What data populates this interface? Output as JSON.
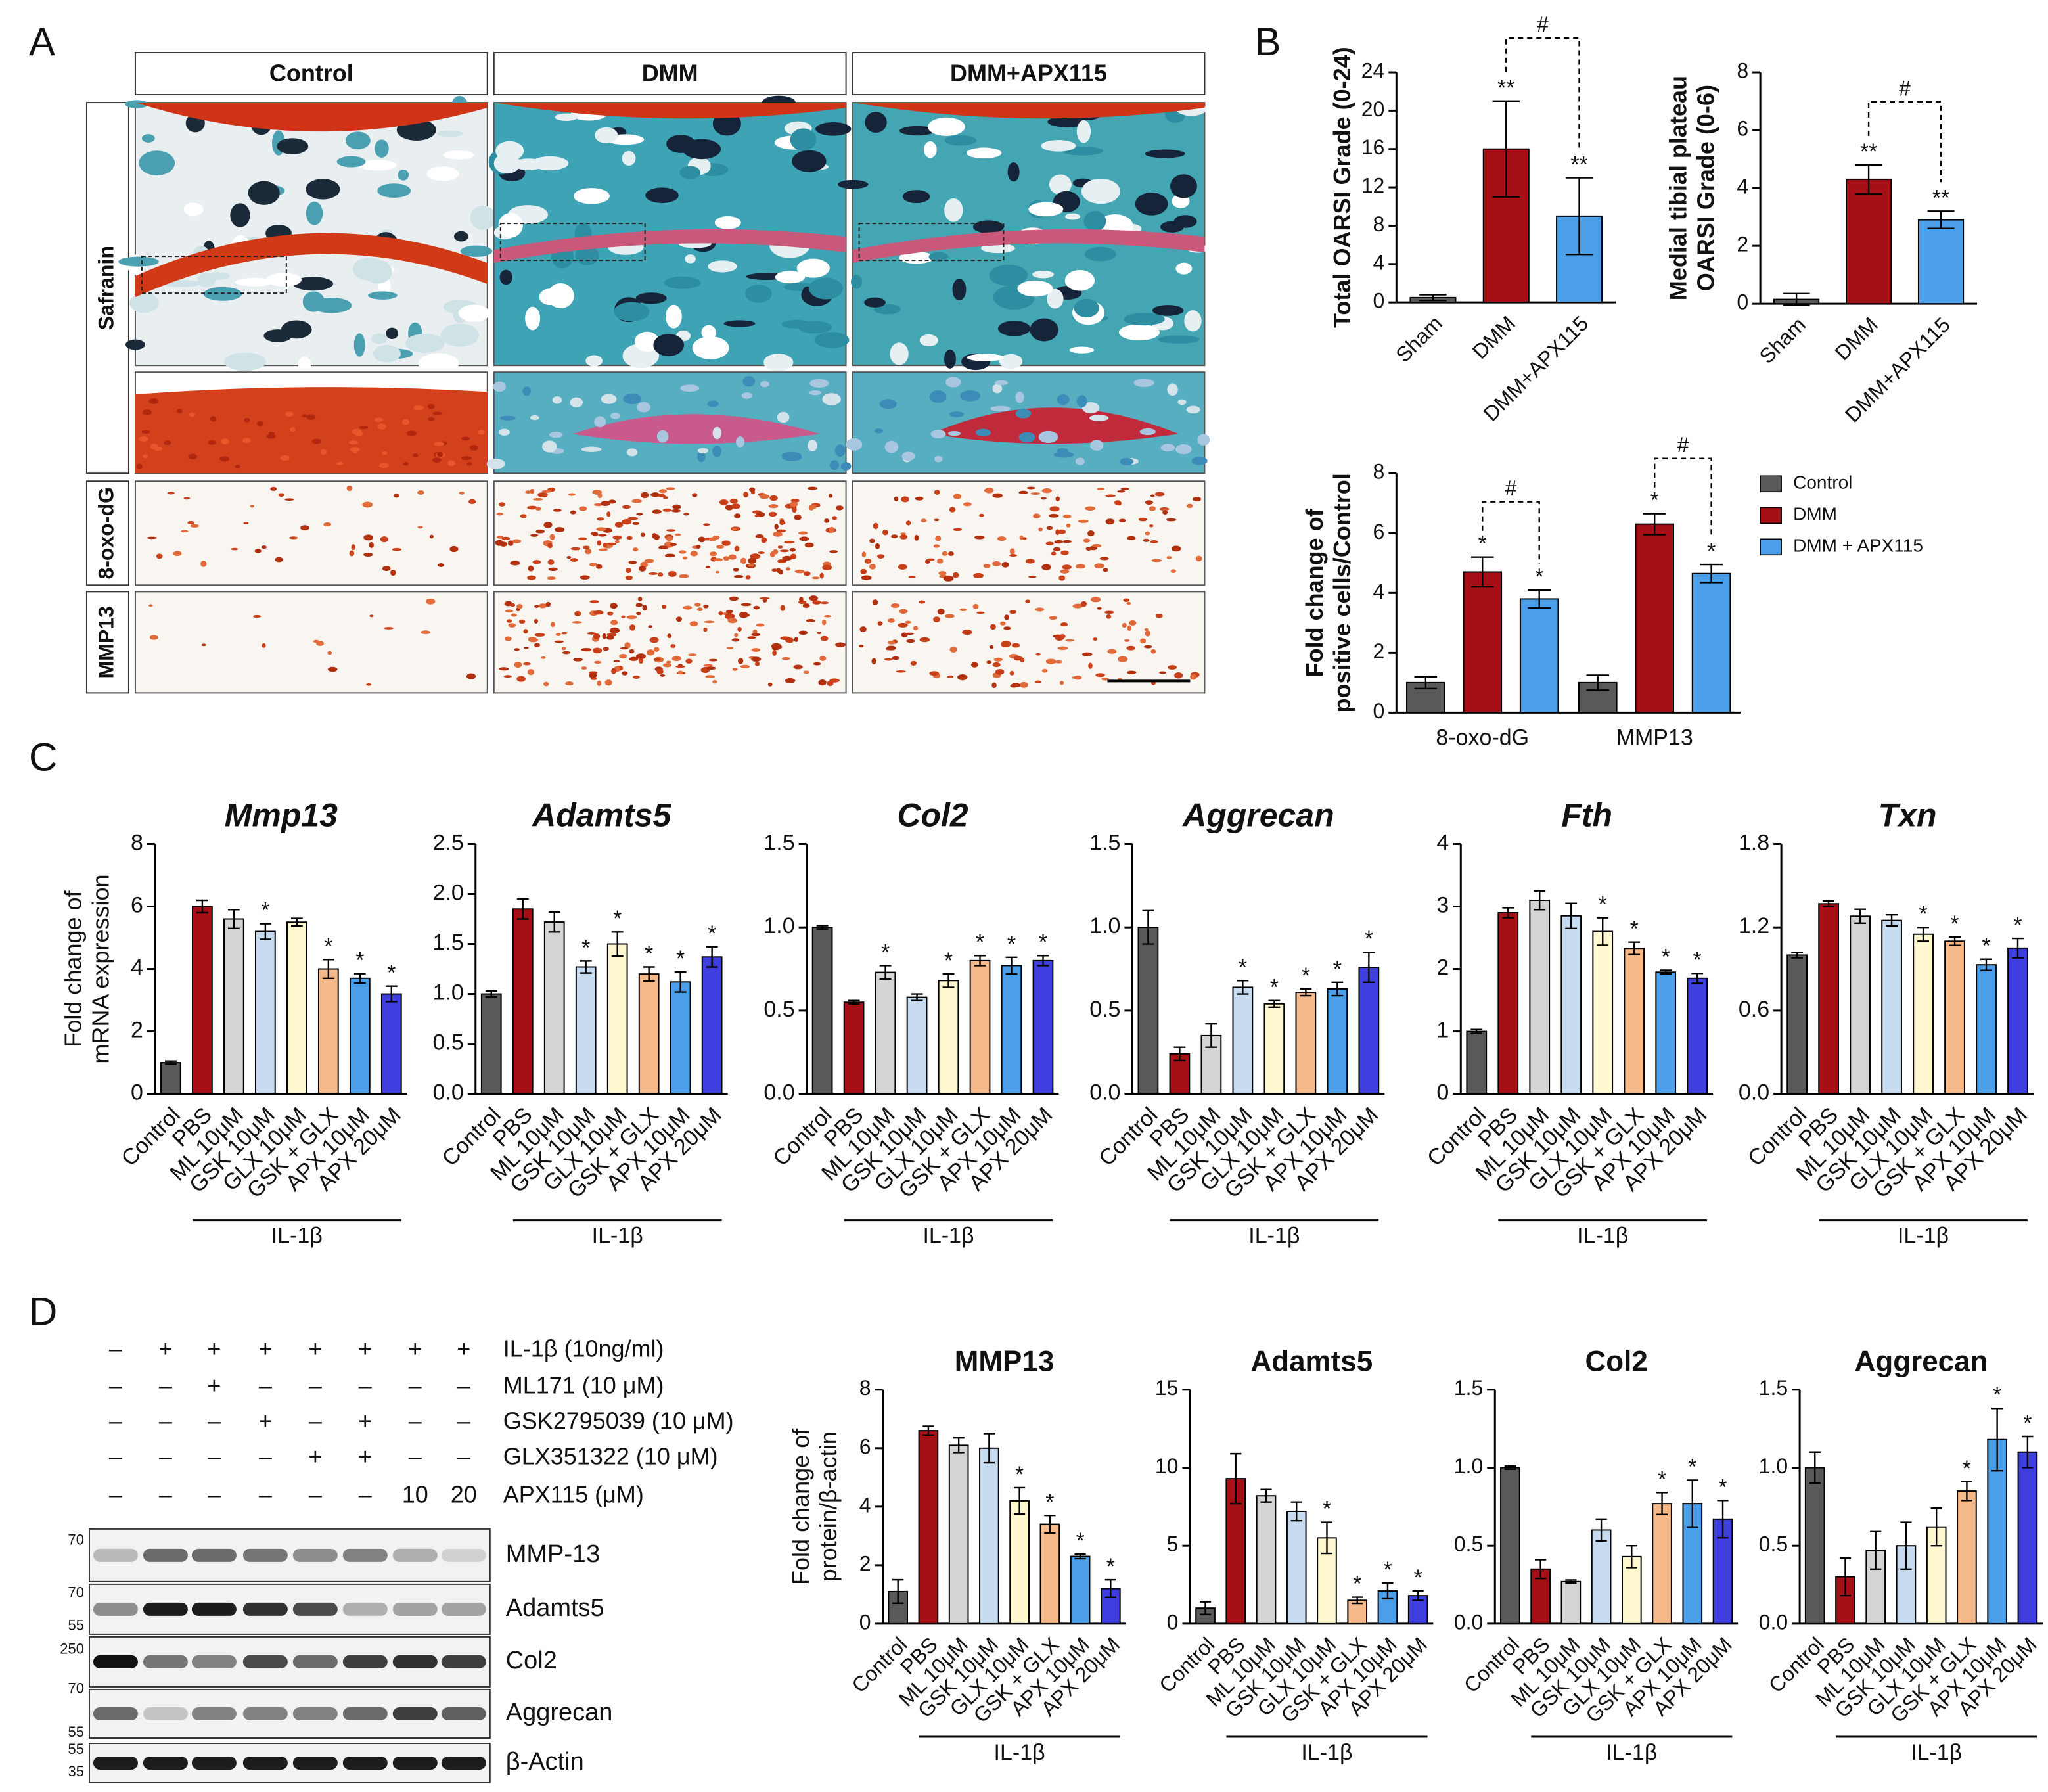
{
  "panels": [
    "A",
    "B",
    "C",
    "D"
  ],
  "histology": {
    "columns": [
      "Control",
      "DMM",
      "DMM+APX115"
    ],
    "rows": [
      "Safranin",
      "8-oxo-dG",
      "MMP13"
    ]
  },
  "western": {
    "treatments": [
      {
        "label": "IL-1β (10ng/ml)",
        "lanes": [
          "–",
          "+",
          "+",
          "+",
          "+",
          "+",
          "+",
          "+"
        ]
      },
      {
        "label": "ML171 (10 μM)",
        "lanes": [
          "–",
          "–",
          "+",
          "–",
          "–",
          "–",
          "–",
          "–"
        ]
      },
      {
        "label": "GSK2795039 (10 μM)",
        "lanes": [
          "–",
          "–",
          "–",
          "+",
          "–",
          "+",
          "–",
          "–"
        ]
      },
      {
        "label": "GLX351322 (10 μM)",
        "lanes": [
          "–",
          "–",
          "–",
          "–",
          "+",
          "+",
          "–",
          "–"
        ]
      },
      {
        "label": "APX115 (μM)",
        "lanes": [
          "–",
          "–",
          "–",
          "–",
          "–",
          "–",
          "10",
          "20"
        ]
      }
    ],
    "blots": [
      {
        "name": "MMP-13",
        "mw": [
          "70"
        ]
      },
      {
        "name": "Adamts5",
        "mw": [
          "70",
          "55"
        ]
      },
      {
        "name": "Col2",
        "mw": [
          "250",
          "70"
        ]
      },
      {
        "name": "Aggrecan",
        "mw": [
          "55"
        ]
      },
      {
        "name": "β-Actin",
        "mw": [
          "55",
          "35"
        ]
      }
    ]
  },
  "chart_data": [
    {
      "type": "bar",
      "ylabel": [
        "Total OARSI Grade (0-24)"
      ],
      "categories": [
        "Sham",
        "DMM",
        "DMM+APX115"
      ],
      "values": [
        0.5,
        16,
        9
      ],
      "errors": [
        0.3,
        5,
        4
      ],
      "annotations": [
        null,
        "**",
        "**"
      ],
      "bracket_label": "#",
      "colors": [
        "#595959",
        "#a50f15",
        "#4a9fe8"
      ],
      "ylim": [
        0,
        24
      ],
      "yticks": [
        0,
        4,
        8,
        12,
        16,
        20,
        24
      ]
    },
    {
      "type": "bar",
      "ylabel": [
        "Medial tibial plateau",
        "OARSI Grade (0-6)"
      ],
      "categories": [
        "Sham",
        "DMM",
        "DMM+APX115"
      ],
      "values": [
        0.15,
        4.3,
        2.9
      ],
      "errors": [
        0.2,
        0.5,
        0.3
      ],
      "annotations": [
        null,
        "**",
        "**"
      ],
      "bracket_label": "#",
      "colors": [
        "#595959",
        "#a50f15",
        "#4a9fe8"
      ],
      "ylim": [
        0,
        8
      ],
      "yticks": [
        0,
        2,
        4,
        6,
        8
      ]
    },
    {
      "type": "grouped_bar",
      "ylabel": [
        "Fold change of",
        "positive cells/Control"
      ],
      "categories": [
        "8-oxo-dG",
        "MMP13"
      ],
      "series": [
        {
          "name": "Control",
          "color": "#595959",
          "values": [
            1,
            1
          ],
          "errors": [
            0.2,
            0.25
          ],
          "annotations": [
            null,
            null
          ]
        },
        {
          "name": "DMM",
          "color": "#a50f15",
          "values": [
            4.7,
            6.3
          ],
          "errors": [
            0.5,
            0.35
          ],
          "annotations": [
            "*",
            "*"
          ]
        },
        {
          "name": "DMM + APX115",
          "color": "#4a9fe8",
          "values": [
            3.8,
            4.65
          ],
          "errors": [
            0.3,
            0.3
          ],
          "annotations": [
            "*",
            "*"
          ]
        }
      ],
      "bracket_labels": [
        "#",
        "#"
      ],
      "legend": "right",
      "ylim": [
        0,
        8
      ],
      "yticks": [
        0,
        2,
        4,
        6,
        8
      ]
    },
    {
      "type": "bar",
      "title": "Mmp13",
      "ylabel": [
        "Fold change of",
        "mRNA expression"
      ],
      "categories": [
        "Control",
        "PBS",
        "ML 10μM",
        "GSK 10μM",
        "GLX 10μM",
        "GSK + GLX",
        "APX 10μM",
        "APX 20μM"
      ],
      "values": [
        1,
        6,
        5.6,
        5.2,
        5.5,
        4,
        3.7,
        3.2
      ],
      "errors": [
        0.05,
        0.2,
        0.3,
        0.25,
        0.12,
        0.3,
        0.15,
        0.25
      ],
      "annotations": [
        null,
        null,
        null,
        "*",
        null,
        "*",
        "*",
        "*"
      ],
      "group_label": "IL-1β",
      "colors": [
        "#595959",
        "#a50f15",
        "#d4d4d4",
        "#c6dbef",
        "#fff7cf",
        "#f5b98a",
        "#4a9fe8",
        "#3f3fe0"
      ],
      "ylim": [
        0,
        8
      ],
      "yticks": [
        0,
        2,
        4,
        6,
        8
      ]
    },
    {
      "type": "bar",
      "title": "Adamts5",
      "categories": [
        "Control",
        "PBS",
        "ML 10μM",
        "GSK 10μM",
        "GLX 10μM",
        "GSK + GLX",
        "APX 10μM",
        "APX 20μM"
      ],
      "values": [
        1,
        1.85,
        1.72,
        1.27,
        1.5,
        1.2,
        1.12,
        1.37
      ],
      "errors": [
        0.03,
        0.1,
        0.1,
        0.06,
        0.12,
        0.07,
        0.1,
        0.1
      ],
      "annotations": [
        null,
        null,
        null,
        "*",
        "*",
        "*",
        "*",
        "*"
      ],
      "group_label": "IL-1β",
      "colors": [
        "#595959",
        "#a50f15",
        "#d4d4d4",
        "#c6dbef",
        "#fff7cf",
        "#f5b98a",
        "#4a9fe8",
        "#3f3fe0"
      ],
      "ylim": [
        0,
        2.5
      ],
      "yticks": [
        {
          "value": 0,
          "label": "0.0"
        },
        0.5,
        {
          "value": 1,
          "label": "1.0"
        },
        1.5,
        {
          "value": 2,
          "label": "2.0"
        },
        2.5
      ]
    },
    {
      "type": "bar",
      "title": "Col2",
      "categories": [
        "Control",
        "PBS",
        "ML 10μM",
        "GSK 10μM",
        "GLX 10μM",
        "GSK + GLX",
        "APX 10μM",
        "APX 20μM"
      ],
      "values": [
        1,
        0.55,
        0.73,
        0.58,
        0.68,
        0.8,
        0.77,
        0.8
      ],
      "errors": [
        0.01,
        0.01,
        0.04,
        0.02,
        0.04,
        0.03,
        0.05,
        0.03
      ],
      "annotations": [
        null,
        null,
        "*",
        null,
        "*",
        "*",
        "*",
        "*"
      ],
      "group_label": "IL-1β",
      "colors": [
        "#595959",
        "#a50f15",
        "#d4d4d4",
        "#c6dbef",
        "#fff7cf",
        "#f5b98a",
        "#4a9fe8",
        "#3f3fe0"
      ],
      "ylim": [
        0,
        1.5
      ],
      "yticks": [
        {
          "value": 0,
          "label": "0.0"
        },
        0.5,
        {
          "value": 1,
          "label": "1.0"
        },
        1.5
      ]
    },
    {
      "type": "bar",
      "title": "Aggrecan",
      "categories": [
        "Control",
        "PBS",
        "ML 10μM",
        "GSK 10μM",
        "GLX 10μM",
        "GSK + GLX",
        "APX 10μM",
        "APX 20μM"
      ],
      "values": [
        1,
        0.24,
        0.35,
        0.64,
        0.54,
        0.61,
        0.63,
        0.76
      ],
      "errors": [
        0.1,
        0.04,
        0.07,
        0.04,
        0.02,
        0.02,
        0.04,
        0.09
      ],
      "annotations": [
        null,
        null,
        null,
        "*",
        "*",
        "*",
        "*",
        "*"
      ],
      "group_label": "IL-1β",
      "colors": [
        "#595959",
        "#a50f15",
        "#d4d4d4",
        "#c6dbef",
        "#fff7cf",
        "#f5b98a",
        "#4a9fe8",
        "#3f3fe0"
      ],
      "ylim": [
        0,
        1.5
      ],
      "yticks": [
        {
          "value": 0,
          "label": "0.0"
        },
        0.5,
        {
          "value": 1,
          "label": "1.0"
        },
        1.5
      ]
    },
    {
      "type": "bar",
      "title": "Fth",
      "categories": [
        "Control",
        "PBS",
        "ML 10μM",
        "GSK 10μM",
        "GLX 10μM",
        "GSK + GLX",
        "APX 10μM",
        "APX 20μM"
      ],
      "values": [
        1,
        2.9,
        3.1,
        2.85,
        2.6,
        2.33,
        1.95,
        1.85
      ],
      "errors": [
        0.03,
        0.08,
        0.15,
        0.2,
        0.22,
        0.1,
        0.03,
        0.08
      ],
      "annotations": [
        null,
        null,
        null,
        null,
        "*",
        "*",
        "*",
        "*"
      ],
      "group_label": "IL-1β",
      "colors": [
        "#595959",
        "#a50f15",
        "#d4d4d4",
        "#c6dbef",
        "#fff7cf",
        "#f5b98a",
        "#4a9fe8",
        "#3f3fe0"
      ],
      "ylim": [
        0,
        4
      ],
      "yticks": [
        0,
        1,
        2,
        3,
        4
      ]
    },
    {
      "type": "bar",
      "title": "Txn",
      "categories": [
        "Control",
        "PBS",
        "ML 10μM",
        "GSK 10μM",
        "GLX 10μM",
        "GSK + GLX",
        "APX 10μM",
        "APX 20μM"
      ],
      "values": [
        1,
        1.37,
        1.28,
        1.25,
        1.15,
        1.1,
        0.93,
        1.05
      ],
      "errors": [
        0.02,
        0.02,
        0.05,
        0.04,
        0.05,
        0.03,
        0.04,
        0.07
      ],
      "annotations": [
        null,
        null,
        null,
        null,
        "*",
        "*",
        "*",
        "*"
      ],
      "group_label": "IL-1β",
      "colors": [
        "#595959",
        "#a50f15",
        "#d4d4d4",
        "#c6dbef",
        "#fff7cf",
        "#f5b98a",
        "#4a9fe8",
        "#3f3fe0"
      ],
      "ylim": [
        0,
        1.8
      ],
      "yticks": [
        {
          "value": 0,
          "label": "0.0"
        },
        0.6,
        1.2,
        1.8
      ]
    },
    {
      "type": "bar",
      "title": "MMP13",
      "ylabel": [
        "Fold change of",
        "protein/β-actin"
      ],
      "categories": [
        "Control",
        "PBS",
        "ML 10μM",
        "GSK 10μM",
        "GLX 10μM",
        "GSK + GLX",
        "APX 10μM",
        "APX 20μM"
      ],
      "values": [
        1.1,
        6.6,
        6.1,
        6.0,
        4.2,
        3.4,
        2.3,
        1.2
      ],
      "errors": [
        0.4,
        0.15,
        0.25,
        0.5,
        0.45,
        0.3,
        0.08,
        0.3
      ],
      "annotations": [
        null,
        null,
        null,
        null,
        "*",
        "*",
        "*",
        "*"
      ],
      "group_label": "IL-1β",
      "colors": [
        "#595959",
        "#a50f15",
        "#d4d4d4",
        "#c6dbef",
        "#fff7cf",
        "#f5b98a",
        "#4a9fe8",
        "#3f3fe0"
      ],
      "ylim": [
        0,
        8
      ],
      "yticks": [
        0,
        2,
        4,
        6,
        8
      ]
    },
    {
      "type": "bar",
      "title": "Adamts5",
      "categories": [
        "Control",
        "PBS",
        "ML 10μM",
        "GSK 10μM",
        "GLX 10μM",
        "GSK + GLX",
        "APX 10μM",
        "APX 20μM"
      ],
      "values": [
        1,
        9.3,
        8.2,
        7.2,
        5.5,
        1.5,
        2.1,
        1.8
      ],
      "errors": [
        0.4,
        1.6,
        0.4,
        0.6,
        1.0,
        0.2,
        0.5,
        0.3
      ],
      "annotations": [
        null,
        null,
        null,
        null,
        "*",
        "*",
        "*",
        "*"
      ],
      "group_label": "IL-1β",
      "colors": [
        "#595959",
        "#a50f15",
        "#d4d4d4",
        "#c6dbef",
        "#fff7cf",
        "#f5b98a",
        "#4a9fe8",
        "#3f3fe0"
      ],
      "ylim": [
        0,
        15
      ],
      "yticks": [
        0,
        5,
        10,
        15
      ]
    },
    {
      "type": "bar",
      "title": "Col2",
      "categories": [
        "Control",
        "PBS",
        "ML 10μM",
        "GSK 10μM",
        "GLX 10μM",
        "GSK + GLX",
        "APX 10μM",
        "APX 20μM"
      ],
      "values": [
        1,
        0.35,
        0.27,
        0.6,
        0.43,
        0.77,
        0.77,
        0.67
      ],
      "errors": [
        0.01,
        0.06,
        0.01,
        0.07,
        0.07,
        0.07,
        0.15,
        0.12
      ],
      "annotations": [
        null,
        null,
        null,
        null,
        null,
        "*",
        "*",
        "*"
      ],
      "group_label": "IL-1β",
      "colors": [
        "#595959",
        "#a50f15",
        "#d4d4d4",
        "#c6dbef",
        "#fff7cf",
        "#f5b98a",
        "#4a9fe8",
        "#3f3fe0"
      ],
      "ylim": [
        0,
        1.5
      ],
      "yticks": [
        {
          "value": 0,
          "label": "0.0"
        },
        0.5,
        {
          "value": 1,
          "label": "1.0"
        },
        1.5
      ]
    },
    {
      "type": "bar",
      "title": "Aggrecan",
      "categories": [
        "Control",
        "PBS",
        "ML 10μM",
        "GSK 10μM",
        "GLX 10μM",
        "GSK + GLX",
        "APX 10μM",
        "APX 20μM"
      ],
      "values": [
        1,
        0.3,
        0.47,
        0.5,
        0.62,
        0.85,
        1.18,
        1.1
      ],
      "errors": [
        0.1,
        0.12,
        0.12,
        0.15,
        0.12,
        0.06,
        0.2,
        0.1
      ],
      "annotations": [
        null,
        null,
        null,
        null,
        null,
        "*",
        "*",
        "*"
      ],
      "group_label": "IL-1β",
      "colors": [
        "#595959",
        "#a50f15",
        "#d4d4d4",
        "#c6dbef",
        "#fff7cf",
        "#f5b98a",
        "#4a9fe8",
        "#3f3fe0"
      ],
      "ylim": [
        0,
        1.5
      ],
      "yticks": [
        {
          "value": 0,
          "label": "0.0"
        },
        0.5,
        {
          "value": 1,
          "label": "1.0"
        },
        1.5
      ]
    }
  ]
}
